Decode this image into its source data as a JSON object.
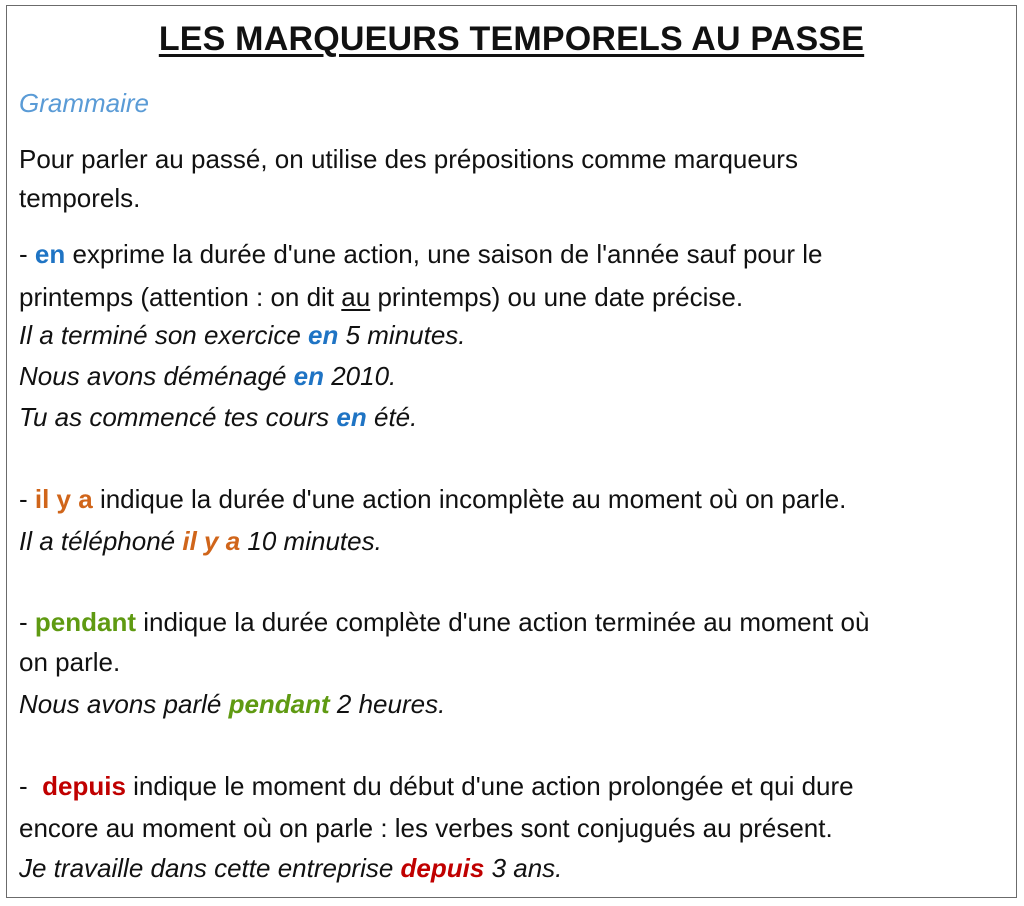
{
  "title": "LES MARQUEURS TEMPORELS AU PASSE",
  "subtitle": "Grammaire",
  "intro": [
    "Pour parler au passé, on utilise des prépositions comme marqueurs",
    "temporels."
  ],
  "en": {
    "dash": "- ",
    "keyword": "en",
    "line1_rest": " exprime la durée d'une action, une saison de l'année sauf pour le",
    "line2_pre": "printemps (attention : on dit ",
    "line2_u": "au",
    "line2_post": " printemps) ou une date précise.",
    "ex1_pre": "Il a terminé son exercice ",
    "ex1_post": " 5 minutes.",
    "ex2_pre": "Nous avons déménagé ",
    "ex2_post": " 2010.",
    "ex3_pre": "Tu as commencé tes cours ",
    "ex3_post": " été."
  },
  "ilya": {
    "dash": "- ",
    "keyword": "il y a",
    "line1_rest": " indique la durée d'une action incomplète au moment où on parle.",
    "ex1_pre": "Il a téléphoné ",
    "ex1_post": " 10 minutes."
  },
  "pendant": {
    "dash": "- ",
    "keyword": "pendant",
    "line1_rest": " indique la durée complète d'une action terminée au moment où",
    "line2": "on parle.",
    "ex1_pre": "Nous avons parlé ",
    "ex1_post": " 2 heures."
  },
  "depuis": {
    "dash": "-  ",
    "keyword": "depuis",
    "line1_rest": " indique le moment du début d'une action prolongée et qui dure",
    "line2": "encore au moment où on parle : les verbes sont conjugués au présent.",
    "ex1_pre": "Je travaille dans cette entreprise ",
    "ex1_post": " 3 ans."
  },
  "colors": {
    "en": "#1f74c4",
    "ilya": "#d0651a",
    "pendant": "#5f9a12",
    "depuis": "#c00000",
    "subtitle": "#5a9bd6"
  }
}
